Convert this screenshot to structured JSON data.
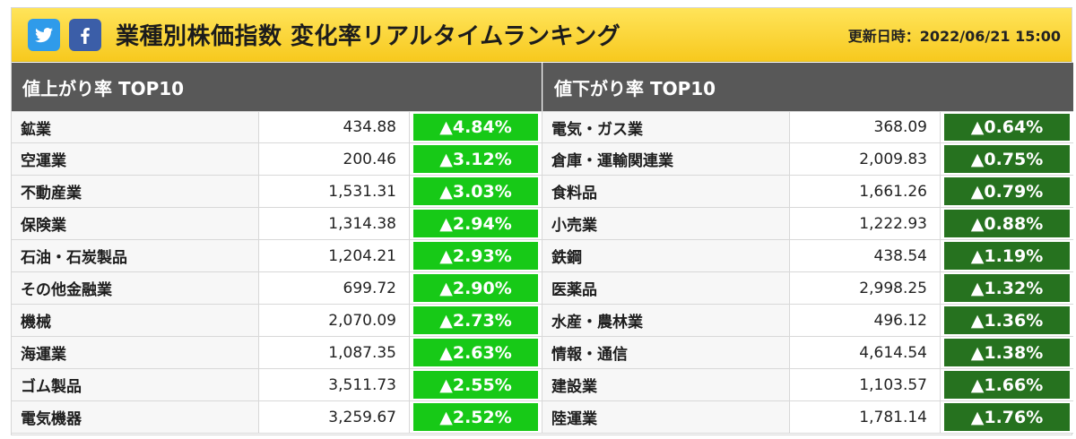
{
  "header": {
    "title": "業種別株価指数 変化率リアルタイムランキング",
    "updated_label": "更新日時：",
    "updated_value": "2022/06/21 15:00",
    "icons": [
      "twitter-icon",
      "facebook-icon"
    ],
    "bar_color": "#f7c91e"
  },
  "left": {
    "heading": "値上がり率 TOP10",
    "badge_color": "#17c917",
    "rows": [
      {
        "name": "鉱業",
        "value": "434.88",
        "change": "▲4.84%"
      },
      {
        "name": "空運業",
        "value": "200.46",
        "change": "▲3.12%"
      },
      {
        "name": "不動産業",
        "value": "1,531.31",
        "change": "▲3.03%"
      },
      {
        "name": "保険業",
        "value": "1,314.38",
        "change": "▲2.94%"
      },
      {
        "name": "石油・石炭製品",
        "value": "1,204.21",
        "change": "▲2.93%"
      },
      {
        "name": "その他金融業",
        "value": "699.72",
        "change": "▲2.90%"
      },
      {
        "name": "機械",
        "value": "2,070.09",
        "change": "▲2.73%"
      },
      {
        "name": "海運業",
        "value": "1,087.35",
        "change": "▲2.63%"
      },
      {
        "name": "ゴム製品",
        "value": "3,511.73",
        "change": "▲2.55%"
      },
      {
        "name": "電気機器",
        "value": "3,259.67",
        "change": "▲2.52%"
      }
    ]
  },
  "right": {
    "heading": "値下がり率 TOP10",
    "badge_color": "#26721f",
    "rows": [
      {
        "name": "電気・ガス業",
        "value": "368.09",
        "change": "▲0.64%"
      },
      {
        "name": "倉庫・運輸関連業",
        "value": "2,009.83",
        "change": "▲0.75%"
      },
      {
        "name": "食料品",
        "value": "1,661.26",
        "change": "▲0.79%"
      },
      {
        "name": "小売業",
        "value": "1,222.93",
        "change": "▲0.88%"
      },
      {
        "name": "鉄鋼",
        "value": "438.54",
        "change": "▲1.19%"
      },
      {
        "name": "医薬品",
        "value": "2,998.25",
        "change": "▲1.32%"
      },
      {
        "name": "水産・農林業",
        "value": "496.12",
        "change": "▲1.36%"
      },
      {
        "name": "情報・通信",
        "value": "4,614.54",
        "change": "▲1.38%"
      },
      {
        "name": "建設業",
        "value": "1,103.57",
        "change": "▲1.66%"
      },
      {
        "name": "陸運業",
        "value": "1,781.14",
        "change": "▲1.76%"
      }
    ]
  }
}
